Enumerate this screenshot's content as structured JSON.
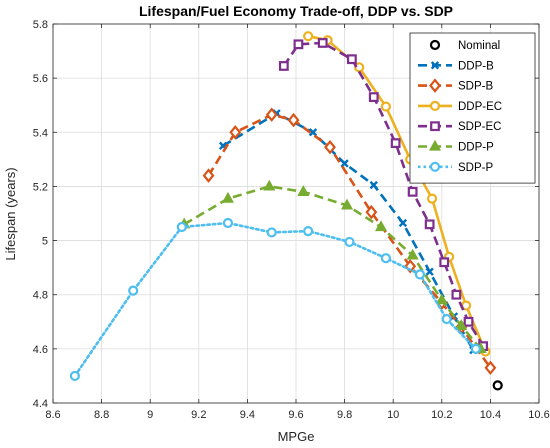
{
  "chart_data": {
    "type": "line",
    "title": "Lifespan/Fuel Economy Trade-off, DDP vs. SDP",
    "xlabel": "MPGe",
    "ylabel": "Lifespan (years)",
    "xlim": [
      8.6,
      10.6
    ],
    "ylim": [
      4.4,
      5.8
    ],
    "xticks": [
      "8.6",
      "8.8",
      "9",
      "9.2",
      "9.4",
      "9.6",
      "9.8",
      "10",
      "10.2",
      "10.4",
      "10.6"
    ],
    "yticks": [
      "4.4",
      "4.6",
      "4.8",
      "5",
      "5.2",
      "5.4",
      "5.6",
      "5.8"
    ],
    "grid": true,
    "legend_position": "top-right",
    "series": [
      {
        "name": "Nominal",
        "color": "#000000",
        "line": "none",
        "marker": "circle",
        "points": [
          [
            10.43,
            4.465
          ]
        ]
      },
      {
        "name": "DDP-B",
        "color": "#0072BD",
        "line": "dashed",
        "marker": "x",
        "points": [
          [
            9.3,
            5.35
          ],
          [
            9.52,
            5.47
          ],
          [
            9.67,
            5.4
          ],
          [
            9.8,
            5.285
          ],
          [
            9.92,
            5.205
          ],
          [
            10.04,
            5.065
          ],
          [
            10.15,
            4.885
          ],
          [
            10.25,
            4.72
          ],
          [
            10.33,
            4.595
          ]
        ]
      },
      {
        "name": "SDP-B",
        "color": "#D95319",
        "line": "dashed",
        "marker": "diamond",
        "points": [
          [
            9.24,
            5.24
          ],
          [
            9.35,
            5.4
          ],
          [
            9.5,
            5.465
          ],
          [
            9.59,
            5.445
          ],
          [
            9.74,
            5.345
          ],
          [
            9.91,
            5.105
          ],
          [
            10.07,
            4.905
          ],
          [
            10.2,
            4.77
          ],
          [
            10.28,
            4.68
          ],
          [
            10.4,
            4.53
          ]
        ]
      },
      {
        "name": "DDP-EC",
        "color": "#EDB120",
        "line": "solid",
        "marker": "circle",
        "points": [
          [
            9.65,
            5.755
          ],
          [
            9.73,
            5.74
          ],
          [
            9.86,
            5.64
          ],
          [
            9.97,
            5.495
          ],
          [
            10.07,
            5.3
          ],
          [
            10.16,
            5.155
          ],
          [
            10.23,
            4.94
          ],
          [
            10.3,
            4.76
          ],
          [
            10.38,
            4.59
          ]
        ]
      },
      {
        "name": "SDP-EC",
        "color": "#7E2F8E",
        "line": "dashed",
        "marker": "square",
        "points": [
          [
            9.55,
            5.645
          ],
          [
            9.61,
            5.725
          ],
          [
            9.71,
            5.73
          ],
          [
            9.83,
            5.67
          ],
          [
            9.92,
            5.53
          ],
          [
            10.01,
            5.36
          ],
          [
            10.08,
            5.18
          ],
          [
            10.15,
            5.06
          ],
          [
            10.21,
            4.92
          ],
          [
            10.26,
            4.8
          ],
          [
            10.31,
            4.7
          ],
          [
            10.37,
            4.61
          ]
        ]
      },
      {
        "name": "DDP-P",
        "color": "#77AC30",
        "line": "dashed",
        "marker": "triangle",
        "points": [
          [
            9.14,
            5.06
          ],
          [
            9.32,
            5.155
          ],
          [
            9.49,
            5.2
          ],
          [
            9.63,
            5.18
          ],
          [
            9.81,
            5.13
          ],
          [
            9.95,
            5.05
          ],
          [
            10.08,
            4.945
          ],
          [
            10.2,
            4.78
          ],
          [
            10.28,
            4.685
          ],
          [
            10.36,
            4.6
          ]
        ]
      },
      {
        "name": "SDP-P",
        "color": "#4DBEEE",
        "line": "dotted",
        "marker": "circle",
        "points": [
          [
            8.69,
            4.5
          ],
          [
            8.93,
            4.815
          ],
          [
            9.13,
            5.05
          ],
          [
            9.32,
            5.065
          ],
          [
            9.5,
            5.03
          ],
          [
            9.65,
            5.035
          ],
          [
            9.82,
            4.995
          ],
          [
            9.97,
            4.935
          ],
          [
            10.11,
            4.875
          ],
          [
            10.22,
            4.71
          ],
          [
            10.34,
            4.6
          ]
        ]
      }
    ]
  }
}
